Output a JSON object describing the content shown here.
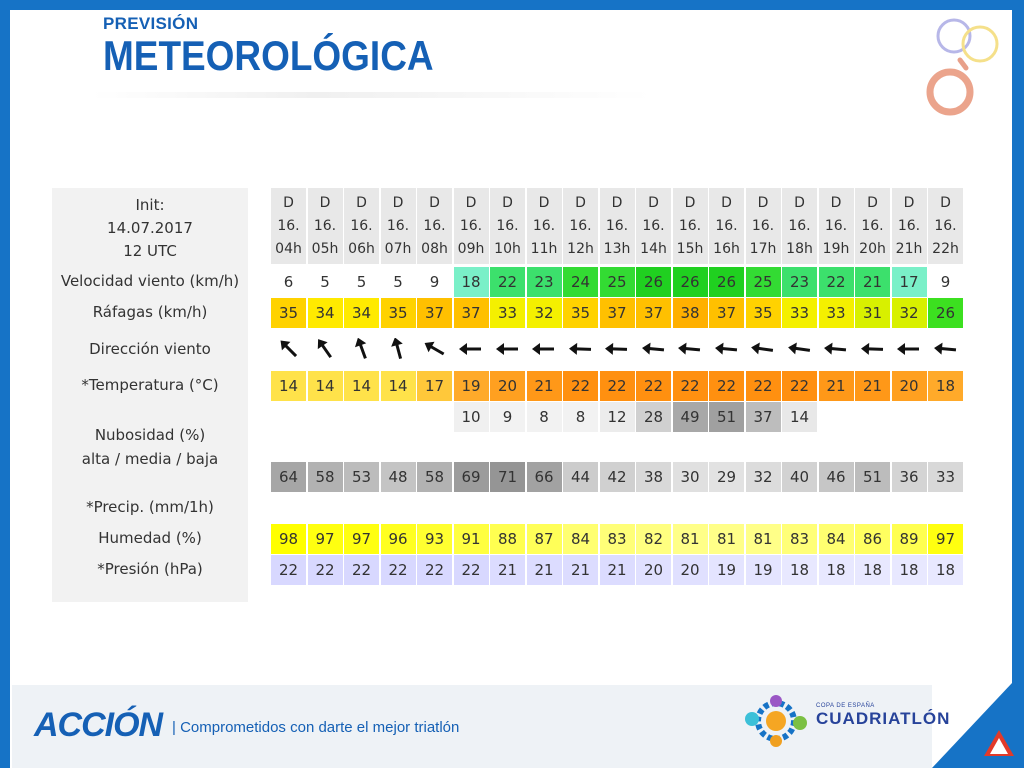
{
  "title": {
    "line1": "PREVISIÓN",
    "line2": "METEOROLÓGICA"
  },
  "table": {
    "init_labels": [
      "Init:",
      "14.07.2017",
      "12 UTC"
    ],
    "row_labels": {
      "wind": "Velocidad viento (km/h)",
      "gusts": "Ráfagas (km/h)",
      "direction": "Dirección viento",
      "temperature": "*Temperatura (°C)",
      "cloud_title": "Nubosidad (%)",
      "cloud_sub": "alta / media / baja",
      "precip": "*Precip. (mm/1h)",
      "humidity": "Humedad (%)",
      "pressure": "*Presión (hPa)"
    },
    "columns": [
      {
        "day": "D",
        "date": "16.",
        "hour": "04h",
        "wind": "6",
        "gust": "35",
        "dir": 315,
        "temp": "14",
        "cloud_mid": "",
        "cloud_low": "64",
        "hum": "98",
        "pres": "22"
      },
      {
        "day": "D",
        "date": "16.",
        "hour": "05h",
        "wind": "5",
        "gust": "34",
        "dir": 325,
        "temp": "14",
        "cloud_mid": "",
        "cloud_low": "58",
        "hum": "97",
        "pres": "22"
      },
      {
        "day": "D",
        "date": "16.",
        "hour": "06h",
        "wind": "5",
        "gust": "34",
        "dir": 340,
        "temp": "14",
        "cloud_mid": "",
        "cloud_low": "53",
        "hum": "97",
        "pres": "22"
      },
      {
        "day": "D",
        "date": "16.",
        "hour": "07h",
        "wind": "5",
        "gust": "35",
        "dir": 345,
        "temp": "14",
        "cloud_mid": "",
        "cloud_low": "48",
        "hum": "96",
        "pres": "22"
      },
      {
        "day": "D",
        "date": "16.",
        "hour": "08h",
        "wind": "9",
        "gust": "37",
        "dir": 300,
        "temp": "17",
        "cloud_mid": "",
        "cloud_low": "58",
        "hum": "93",
        "pres": "22"
      },
      {
        "day": "D",
        "date": "16.",
        "hour": "09h",
        "wind": "18",
        "gust": "37",
        "dir": 270,
        "temp": "19",
        "cloud_mid": "10",
        "cloud_low": "69",
        "hum": "91",
        "pres": "22"
      },
      {
        "day": "D",
        "date": "16.",
        "hour": "10h",
        "wind": "22",
        "gust": "33",
        "dir": 270,
        "temp": "20",
        "cloud_mid": "9",
        "cloud_low": "71",
        "hum": "88",
        "pres": "21"
      },
      {
        "day": "D",
        "date": "16.",
        "hour": "11h",
        "wind": "23",
        "gust": "32",
        "dir": 270,
        "temp": "21",
        "cloud_mid": "8",
        "cloud_low": "66",
        "hum": "87",
        "pres": "21"
      },
      {
        "day": "D",
        "date": "16.",
        "hour": "12h",
        "wind": "24",
        "gust": "35",
        "dir": 272,
        "temp": "22",
        "cloud_mid": "8",
        "cloud_low": "44",
        "hum": "84",
        "pres": "21"
      },
      {
        "day": "D",
        "date": "16.",
        "hour": "13h",
        "wind": "25",
        "gust": "37",
        "dir": 272,
        "temp": "22",
        "cloud_mid": "12",
        "cloud_low": "42",
        "hum": "83",
        "pres": "21"
      },
      {
        "day": "D",
        "date": "16.",
        "hour": "14h",
        "wind": "26",
        "gust": "37",
        "dir": 275,
        "temp": "22",
        "cloud_mid": "28",
        "cloud_low": "38",
        "hum": "82",
        "pres": "20"
      },
      {
        "day": "D",
        "date": "16.",
        "hour": "15h",
        "wind": "26",
        "gust": "38",
        "dir": 275,
        "temp": "22",
        "cloud_mid": "49",
        "cloud_low": "30",
        "hum": "81",
        "pres": "20"
      },
      {
        "day": "D",
        "date": "16.",
        "hour": "16h",
        "wind": "26",
        "gust": "37",
        "dir": 275,
        "temp": "22",
        "cloud_mid": "51",
        "cloud_low": "29",
        "hum": "81",
        "pres": "19"
      },
      {
        "day": "D",
        "date": "16.",
        "hour": "17h",
        "wind": "25",
        "gust": "35",
        "dir": 278,
        "temp": "22",
        "cloud_mid": "37",
        "cloud_low": "32",
        "hum": "81",
        "pres": "19"
      },
      {
        "day": "D",
        "date": "16.",
        "hour": "18h",
        "wind": "23",
        "gust": "33",
        "dir": 278,
        "temp": "22",
        "cloud_mid": "14",
        "cloud_low": "40",
        "hum": "83",
        "pres": "18"
      },
      {
        "day": "D",
        "date": "16.",
        "hour": "19h",
        "wind": "22",
        "gust": "33",
        "dir": 275,
        "temp": "21",
        "cloud_mid": "",
        "cloud_low": "46",
        "hum": "84",
        "pres": "18"
      },
      {
        "day": "D",
        "date": "16.",
        "hour": "20h",
        "wind": "21",
        "gust": "31",
        "dir": 272,
        "temp": "21",
        "cloud_mid": "",
        "cloud_low": "51",
        "hum": "86",
        "pres": "18"
      },
      {
        "day": "D",
        "date": "16.",
        "hour": "21h",
        "wind": "17",
        "gust": "32",
        "dir": 270,
        "temp": "20",
        "cloud_mid": "",
        "cloud_low": "36",
        "hum": "89",
        "pres": "18"
      },
      {
        "day": "D",
        "date": "16.",
        "hour": "22h",
        "wind": "9",
        "gust": "26",
        "dir": 275,
        "temp": "18",
        "cloud_mid": "",
        "cloud_low": "33",
        "hum": "97",
        "pres": "18"
      }
    ],
    "colors": {
      "wind_scale": [
        "#ffffff",
        "#ffffff",
        "#ffffff",
        "#ffffff",
        "#ffffff",
        "#7af0c8",
        "#3ce06c",
        "#3ce06c",
        "#33db33",
        "#33db33",
        "#20d020",
        "#20d020",
        "#20d020",
        "#33db33",
        "#3ce06c",
        "#3ce06c",
        "#3ce06c",
        "#7af0c8",
        "#ffffff"
      ],
      "gust_scale": [
        "#ffd200",
        "#ffea00",
        "#ffea00",
        "#ffd200",
        "#ffc000",
        "#ffc000",
        "#f4f000",
        "#f4f000",
        "#ffd200",
        "#ffc000",
        "#ffc000",
        "#ffb000",
        "#ffc000",
        "#ffd200",
        "#f4f000",
        "#f4f000",
        "#d8f000",
        "#d8f000",
        "#3ce020"
      ],
      "temp_scale": [
        "#ffe24a",
        "#ffe24a",
        "#ffe24a",
        "#ffe24a",
        "#ffc83a",
        "#ffaa2a",
        "#ffa020",
        "#ff9818",
        "#ff9010",
        "#ff9010",
        "#ff9010",
        "#ff9010",
        "#ff9010",
        "#ff9010",
        "#ff9010",
        "#ff9818",
        "#ff9818",
        "#ffa020",
        "#ffaa2a"
      ],
      "cloud_mid_scale": [
        "#ffffff",
        "#ffffff",
        "#ffffff",
        "#ffffff",
        "#ffffff",
        "#f0f0f0",
        "#f2f2f2",
        "#f2f2f2",
        "#f2f2f2",
        "#ececec",
        "#d0d0d0",
        "#a8a8a8",
        "#a0a0a0",
        "#bdbdbd",
        "#e8e8e8",
        "#ffffff",
        "#ffffff",
        "#ffffff",
        "#ffffff"
      ],
      "cloud_low_scale": [
        "#a6a6a6",
        "#b2b2b2",
        "#bcbcbc",
        "#c4c4c4",
        "#b2b2b2",
        "#9c9c9c",
        "#959595",
        "#a2a2a2",
        "#cccccc",
        "#d0d0d0",
        "#d8d8d8",
        "#e0e0e0",
        "#e2e2e2",
        "#dcdcdc",
        "#d2d2d2",
        "#c6c6c6",
        "#bcbcbc",
        "#d4d4d4",
        "#d8d8d8"
      ],
      "hum_scale": [
        "#ffff00",
        "#ffff10",
        "#ffff10",
        "#ffff20",
        "#ffff30",
        "#ffff40",
        "#ffff50",
        "#ffff58",
        "#ffff70",
        "#ffff78",
        "#ffff80",
        "#ffff88",
        "#ffff88",
        "#ffff88",
        "#ffff78",
        "#ffff70",
        "#ffff60",
        "#ffff50",
        "#ffff10"
      ],
      "pres_scale": [
        "#d8d8ff",
        "#d8d8ff",
        "#d8d8ff",
        "#d8d8ff",
        "#d8d8ff",
        "#d8d8ff",
        "#dcdcff",
        "#dcdcff",
        "#dcdcff",
        "#dcdcff",
        "#e0e0ff",
        "#e0e0ff",
        "#e4e4ff",
        "#e4e4ff",
        "#e8e8ff",
        "#e8e8ff",
        "#e8e8ff",
        "#e8e8ff",
        "#e8e8ff"
      ]
    }
  },
  "footer": {
    "brand": "ACCIÓN",
    "slogan": "| Comprometidos con darte el mejor triatlón",
    "cup_small": "COPA DE ESPAÑA",
    "cup_big": "CUADRIATLÓN"
  },
  "brand_color": "#1673c6"
}
